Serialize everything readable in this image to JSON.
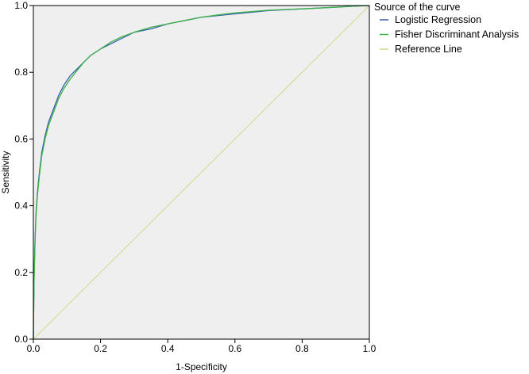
{
  "chart_data": {
    "type": "line",
    "xlabel": "1-Specificity",
    "ylabel": "Sensitivity",
    "xlim": [
      0,
      1
    ],
    "ylim": [
      0,
      1
    ],
    "x_ticks": [
      "0.0",
      "0.2",
      "0.4",
      "0.6",
      "0.8",
      "1.0"
    ],
    "y_ticks": [
      "0.0",
      "0.2",
      "0.4",
      "0.6",
      "0.8",
      "1.0"
    ],
    "grid": false,
    "plot_background": "#efefef",
    "legend": {
      "title": "Source of the curve",
      "position": "right"
    },
    "series": [
      {
        "name": "Logistic Regression",
        "color": "#3c5fa8",
        "x": [
          0,
          0.002,
          0.005,
          0.008,
          0.012,
          0.018,
          0.025,
          0.035,
          0.045,
          0.06,
          0.075,
          0.09,
          0.11,
          0.13,
          0.15,
          0.17,
          0.2,
          0.23,
          0.26,
          0.3,
          0.35,
          0.4,
          0.45,
          0.5,
          0.55,
          0.6,
          0.7,
          0.8,
          0.9,
          0.95,
          1.0
        ],
        "y": [
          0,
          0.18,
          0.3,
          0.38,
          0.44,
          0.5,
          0.56,
          0.61,
          0.65,
          0.69,
          0.73,
          0.76,
          0.79,
          0.81,
          0.83,
          0.85,
          0.87,
          0.885,
          0.9,
          0.92,
          0.93,
          0.945,
          0.955,
          0.965,
          0.97,
          0.975,
          0.985,
          0.99,
          0.995,
          0.998,
          1.0
        ]
      },
      {
        "name": "Fisher Discriminant Analysis",
        "color": "#3ab34a",
        "x": [
          0,
          0.002,
          0.005,
          0.008,
          0.012,
          0.018,
          0.025,
          0.035,
          0.045,
          0.06,
          0.075,
          0.09,
          0.11,
          0.13,
          0.15,
          0.17,
          0.2,
          0.23,
          0.26,
          0.3,
          0.35,
          0.4,
          0.45,
          0.5,
          0.55,
          0.6,
          0.7,
          0.8,
          0.9,
          0.95,
          1.0
        ],
        "y": [
          0,
          0.17,
          0.29,
          0.37,
          0.43,
          0.49,
          0.55,
          0.6,
          0.64,
          0.68,
          0.72,
          0.75,
          0.78,
          0.805,
          0.83,
          0.85,
          0.87,
          0.89,
          0.905,
          0.92,
          0.935,
          0.945,
          0.955,
          0.965,
          0.972,
          0.978,
          0.986,
          0.99,
          0.995,
          0.998,
          1.0
        ]
      },
      {
        "name": "Reference Line",
        "color": "#d3d98a",
        "x": [
          0,
          1
        ],
        "y": [
          0,
          1
        ]
      }
    ]
  }
}
